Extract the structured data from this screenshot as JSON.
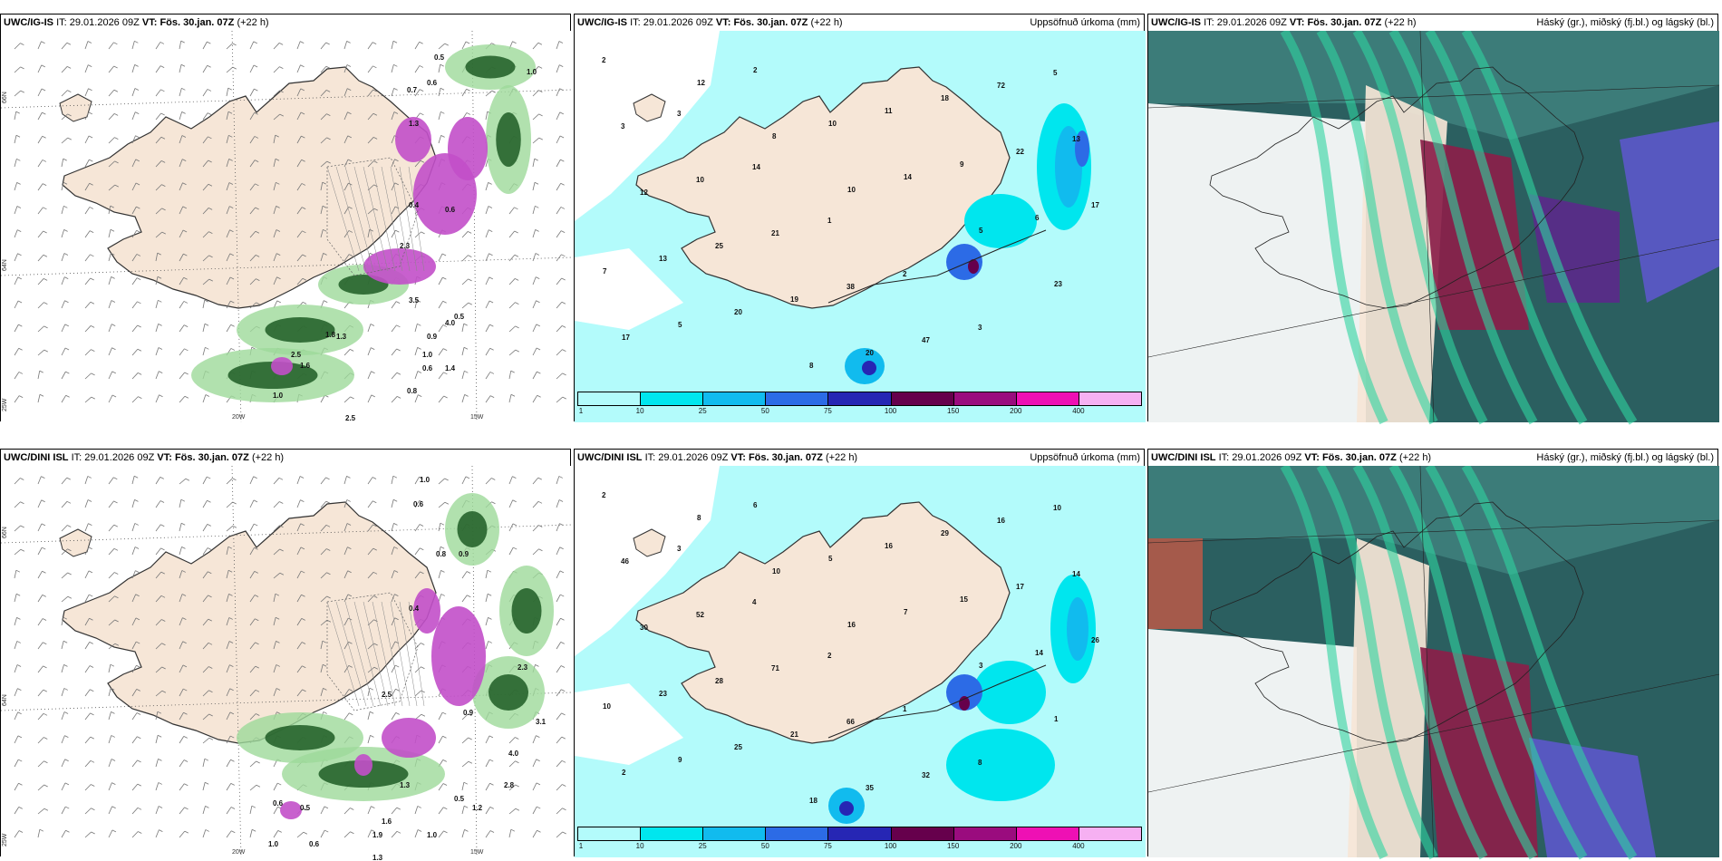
{
  "panels": [
    {
      "id": "p1",
      "model": "UWC/IG-IS",
      "it_label": "IT:",
      "it": "29.01.2026 09Z",
      "vt_label": "VT: Fös. 30.jan. 07Z",
      "lead": "(+22 h)",
      "right_title": "",
      "kind": "wind",
      "axis": [
        "66N",
        "64N",
        "25W",
        "20W",
        "15W"
      ],
      "values": [
        "0.5",
        "1.0",
        "0.7",
        "0.6",
        "1.3",
        "0.4",
        "0.6",
        "2.3",
        "3.5",
        "2.5",
        "1.6",
        "1.3",
        "1.8",
        "0.9",
        "0.5",
        "1.0",
        "0.8",
        "0.6",
        "1.4",
        "2.5",
        "1.0",
        "4.0"
      ]
    },
    {
      "id": "p2",
      "model": "UWC/IG-IS",
      "it_label": "IT:",
      "it": "29.01.2026 09Z",
      "vt_label": "VT: Fös. 30.jan. 07Z",
      "lead": "(+22 h)",
      "right_title": "Uppsöfnuð úrkoma (mm)",
      "kind": "precip",
      "values": [
        "2",
        "3",
        "14",
        "1",
        "2",
        "3",
        "5",
        "3",
        "10",
        "21",
        "38",
        "47",
        "72",
        "13",
        "12",
        "25",
        "19",
        "20",
        "18",
        "22",
        "17",
        "13",
        "20",
        "8",
        "11",
        "9",
        "6",
        "7",
        "5",
        "2",
        "10",
        "14",
        "5",
        "23",
        "17",
        "12",
        "8",
        "10"
      ]
    },
    {
      "id": "p3",
      "model": "UWC/IG-IS",
      "it_label": "IT:",
      "it": "29.01.2026 09Z",
      "vt_label": "VT: Fös. 30.jan. 07Z",
      "lead": "(+22 h)",
      "right_title": "Háský (gr.), miðský (fj.bl.) og lágský (bl.)",
      "kind": "cloud"
    },
    {
      "id": "p4",
      "model": "UWC/DINI ISL",
      "it_label": "IT:",
      "it": "29.01.2026 09Z",
      "vt_label": "VT: Fös. 30.jan. 07Z",
      "lead": "(+22 h)",
      "right_title": "",
      "kind": "wind",
      "axis": [
        "66N",
        "64N",
        "25W",
        "20W",
        "15W"
      ],
      "values": [
        "1.0",
        "0.6",
        "0.8",
        "0.9",
        "0.4",
        "2.5",
        "2.3",
        "0.9",
        "4.0",
        "3.1",
        "1.3",
        "0.5",
        "0.6",
        "1.0",
        "1.6",
        "1.9",
        "0.5",
        "1.2",
        "0.6",
        "1.3",
        "2.8",
        "1.0"
      ]
    },
    {
      "id": "p5",
      "model": "UWC/DINI ISL",
      "it_label": "IT:",
      "it": "29.01.2026 09Z",
      "vt_label": "VT: Fös. 30.jan. 07Z",
      "lead": "(+22 h)",
      "right_title": "Uppsöfnuð úrkoma (mm)",
      "kind": "precip",
      "values": [
        "2",
        "3",
        "4",
        "2",
        "1",
        "8",
        "10",
        "46",
        "52",
        "71",
        "66",
        "32",
        "16",
        "14",
        "30",
        "28",
        "21",
        "35",
        "29",
        "17",
        "26",
        "23",
        "25",
        "18",
        "16",
        "15",
        "14",
        "10",
        "9",
        "6",
        "5",
        "7",
        "3",
        "1",
        "2",
        "8",
        "10",
        "16"
      ]
    },
    {
      "id": "p6",
      "model": "UWC/DINI ISL",
      "it_label": "IT:",
      "it": "29.01.2026 09Z",
      "vt_label": "VT: Fös. 30.jan. 07Z",
      "lead": "(+22 h)",
      "right_title": "Háský (gr.), miðský (fj.bl.) og lágský (bl.)",
      "kind": "cloud"
    }
  ],
  "colorbar": {
    "ticks": [
      "1",
      "10",
      "25",
      "50",
      "75",
      "100",
      "150",
      "200",
      "400"
    ],
    "colors": [
      "#b3fbfb",
      "#00e6ee",
      "#11bbee",
      "#2c6be6",
      "#2626b4",
      "#66004c",
      "#9a0c7e",
      "#ee10b4",
      "#f6b0f2"
    ]
  },
  "colors": {
    "land": "#f6e6d7",
    "sea_precip": "#b3fbfb",
    "green": "#2e7d32",
    "purple": "#c24fc9"
  }
}
